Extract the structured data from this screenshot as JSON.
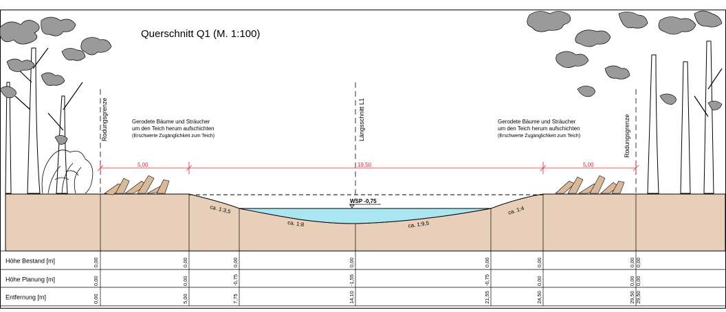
{
  "title": "Querschnitt Q1 (M. 1:100)",
  "left_note": {
    "line1": "Gerodete Bäume und Sträucher",
    "line2": "um den Teich herum aufschichten",
    "line3": "(Erschwerte Zugänglichkeit zum Teich)"
  },
  "right_note": {
    "line1": "Gerodete Bäume und Sträucher",
    "line2": "um den Teich herum aufschichten",
    "line3": "(Erschwerte Zugänglichkeit zum Teich)"
  },
  "labels": {
    "rodung_left": "Rodungsgrenze",
    "rodung_right": "Rodungsgrenze",
    "laengsschnitt": "Längsschnitt L1",
    "wsp": "WSP -0,75"
  },
  "dimensions": [
    "5,00",
    "19,50",
    "5,00"
  ],
  "slopes": [
    "ca. 1:3,5",
    "ca. 1:8",
    "ca. 1:9,5",
    "ca. 1:4"
  ],
  "rows": [
    {
      "label": "Höhe Bestand [m]",
      "values": [
        "0,00",
        "0,00",
        "0,00",
        "0,00",
        "0,00",
        "0,00",
        "0,00",
        "0,00"
      ]
    },
    {
      "label": "Höhe Planung [m]",
      "values": [
        "0,00",
        "0,00",
        "-0,75",
        "-1,55",
        "-0,75",
        "0,00",
        "0,00",
        "0,00"
      ]
    },
    {
      "label": "Entfernung [m]",
      "values": [
        "0,00",
        "5,00",
        "7,75",
        "14,10",
        "21,55",
        "24,50",
        "29,50",
        "29,50"
      ]
    }
  ],
  "colors": {
    "ground": "#e7cfb9",
    "water": "#a9e6f2",
    "dimension": "#e0202a",
    "foliage": "#9a9a9a"
  }
}
